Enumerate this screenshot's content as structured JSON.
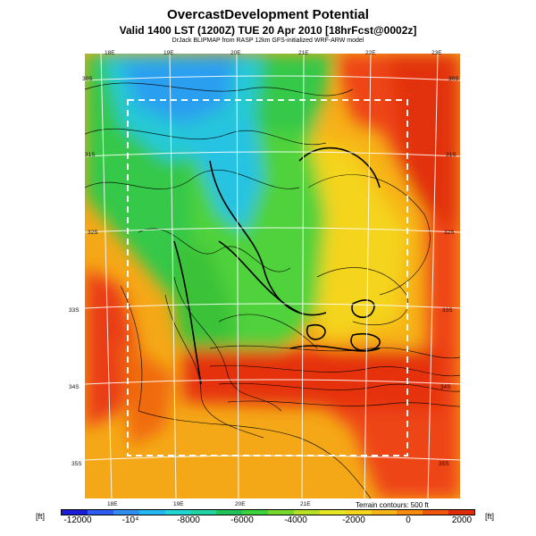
{
  "header": {
    "title": "OvercastDevelopment Potential",
    "subtitle": "Valid 1400 LST (1200Z) TUE 20 Apr 2010 [18hrFcst@0002z]",
    "credit": "DrJack BLIPMAP from RASP 12km GFS-initialized WRF-ARW model"
  },
  "map": {
    "lon_labels_top": [
      "18E",
      "19E",
      "20E",
      "21E",
      "22E",
      "23E"
    ],
    "lon_labels_bottom": [
      "18E",
      "19E",
      "20E",
      "21E"
    ],
    "lat_labels_left": [
      "30S",
      "31S",
      "32S",
      "33S",
      "34S",
      "35S"
    ],
    "lat_labels_right": [
      "30S",
      "31S",
      "32S",
      "33S",
      "34S",
      "35S"
    ],
    "terrain_note": "Terrain contours: 500 ft"
  },
  "colorbar": {
    "unit_left": "[ft]",
    "unit_right": "[ft]",
    "ticks": [
      "-12000",
      "-10⁴",
      "-8000",
      "-6000",
      "-4000",
      "-2000",
      "0",
      "2000"
    ],
    "colors": [
      "#1b1bd9",
      "#2a5df0",
      "#2f8ff0",
      "#22b8f0",
      "#22d6d6",
      "#1fd3a2",
      "#22c25a",
      "#3bd13b",
      "#76d82a",
      "#b5e024",
      "#e6e622",
      "#f4d41c",
      "#f5b516",
      "#f58c10",
      "#f0560e",
      "#e02a0a"
    ]
  }
}
